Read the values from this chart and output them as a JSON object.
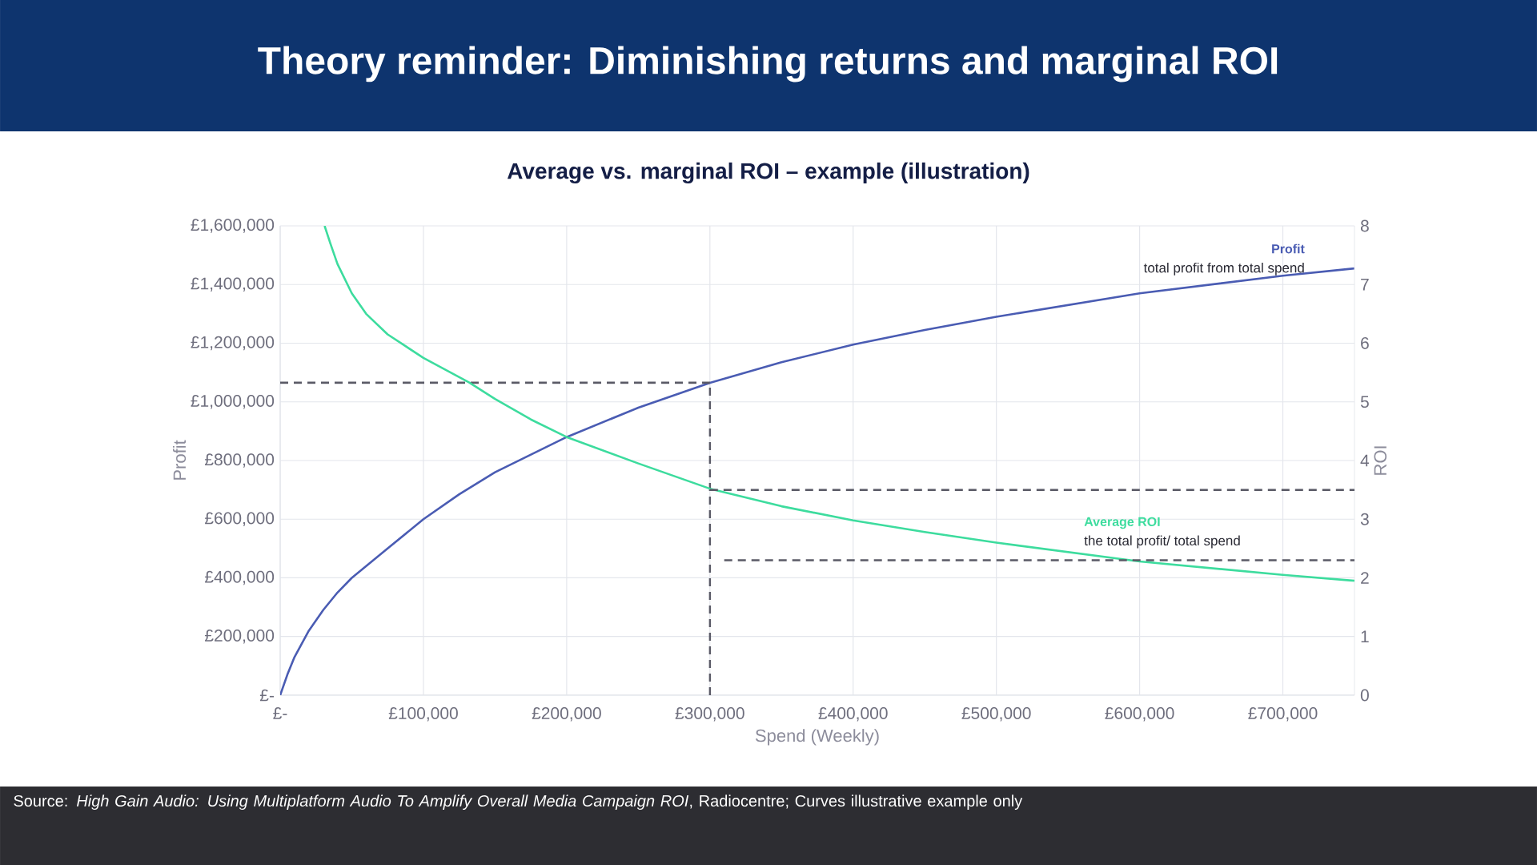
{
  "chart_data": {
    "type": "line",
    "title": "Theory reminder: Diminishing returns and marginal ROI",
    "subtitle": "Average vs. marginal ROI – example (illustration)",
    "xlabel": "Spend (Weekly)",
    "ylabel": "Profit",
    "y2label": "ROI",
    "xlim": [
      0,
      750000
    ],
    "xticks": [
      {
        "value": 0,
        "label": "£-"
      },
      {
        "value": 100000,
        "label": "£100,000"
      },
      {
        "value": 200000,
        "label": "£200,000"
      },
      {
        "value": 300000,
        "label": "£300,000"
      },
      {
        "value": 400000,
        "label": "£400,000"
      },
      {
        "value": 500000,
        "label": "£500,000"
      },
      {
        "value": 600000,
        "label": "£600,000"
      },
      {
        "value": 700000,
        "label": "£700,000"
      }
    ],
    "ylim": [
      0,
      1600000
    ],
    "yticks": [
      {
        "value": 0,
        "label": "£-"
      },
      {
        "value": 200000,
        "label": "£200,000"
      },
      {
        "value": 400000,
        "label": "£400,000"
      },
      {
        "value": 600000,
        "label": "£600,000"
      },
      {
        "value": 800000,
        "label": "£800,000"
      },
      {
        "value": 1000000,
        "label": "£1,000,000"
      },
      {
        "value": 1200000,
        "label": "£1,200,000"
      },
      {
        "value": 1400000,
        "label": "£1,400,000"
      },
      {
        "value": 1600000,
        "label": "£1,600,000"
      }
    ],
    "y2lim": [
      0,
      8
    ],
    "y2ticks": [
      0,
      1,
      2,
      3,
      4,
      5,
      6,
      7,
      8
    ],
    "grid": true,
    "marker": "none",
    "series": [
      {
        "name": "Profit",
        "color": "#4a5cb3",
        "x": [
          0,
          5000,
          10000,
          20000,
          30000,
          40000,
          50000,
          75000,
          100000,
          125000,
          150000,
          200000,
          250000,
          300000,
          350000,
          400000,
          450000,
          500000,
          550000,
          600000,
          650000,
          700000,
          750000
        ],
        "values": [
          0,
          70000,
          130000,
          220000,
          290000,
          350000,
          400000,
          500000,
          600000,
          685000,
          760000,
          880000,
          980000,
          1065000,
          1135000,
          1195000,
          1245000,
          1290000,
          1330000,
          1370000,
          1400000,
          1430000,
          1455000
        ]
      },
      {
        "name": "Average ROI",
        "color": "#3ddc9e",
        "axis": "y2",
        "x": [
          31000,
          35000,
          40000,
          50000,
          60000,
          75000,
          100000,
          132000,
          150000,
          175000,
          200000,
          250000,
          300000,
          350000,
          400000,
          450000,
          500000,
          600000,
          700000,
          750000
        ],
        "values": [
          8.0,
          7.7,
          7.35,
          6.85,
          6.5,
          6.15,
          5.75,
          5.33,
          5.05,
          4.7,
          4.4,
          3.95,
          3.52,
          3.22,
          2.98,
          2.78,
          2.6,
          2.28,
          2.05,
          1.95
        ]
      },
      {
        "color": "#5a5a66",
        "line_style": "dashed",
        "x": [
          0,
          300000
        ],
        "values": [
          1065000,
          1065000
        ]
      },
      {
        "color": "#5a5a66",
        "line_style": "dashed",
        "x": [
          300000,
          300000
        ],
        "values": [
          0,
          1065000
        ]
      },
      {
        "color": "#5a5a66",
        "line_style": "dashed",
        "axis": "y2",
        "x": [
          300000,
          750000
        ],
        "values": [
          3.5,
          3.5
        ]
      },
      {
        "color": "#5a5a66",
        "line_style": "dashed",
        "axis": "y2",
        "x": [
          310000,
          750000
        ],
        "values": [
          2.3,
          2.3
        ]
      }
    ],
    "annotations": [
      "total profit from total spend",
      "the total profit/ total spend",
      "Source: *High Gain Audio: Using Multiplatform Audio To Amplify Overall Media Campaign ROI*, Radiocentre; Curves illustrative example only"
    ]
  }
}
